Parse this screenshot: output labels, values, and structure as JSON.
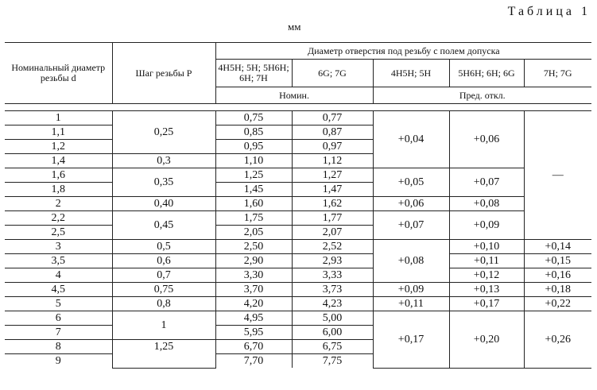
{
  "caption": "Таблица 1",
  "unit": "мм",
  "header": {
    "col_d": "Номинальный диаметр резьбы d",
    "col_p": "Шаг резьбы P",
    "group": "Диаметр отверстия под резьбу с полем допуска",
    "sub_a": "4H5H; 5H; 5H6H; 6H; 7H",
    "sub_b": "6G; 7G",
    "sub_c": "4H5H; 5H",
    "sub_d": "5H6H; 6H; 6G",
    "sub_e": "7H; 7G",
    "nomin": "Номин.",
    "pred": "Пред. откл."
  },
  "rows": [
    {
      "d": "1",
      "a": "0,75",
      "b": "0,77"
    },
    {
      "d": "1,1",
      "a": "0,85",
      "b": "0,87"
    },
    {
      "d": "1,2",
      "a": "0,95",
      "b": "0,97"
    },
    {
      "d": "1,4",
      "a": "1,10",
      "b": "1,12"
    },
    {
      "d": "1,6",
      "a": "1,25",
      "b": "1,27"
    },
    {
      "d": "1,8",
      "a": "1,45",
      "b": "1,47"
    },
    {
      "d": "2",
      "a": "1,60",
      "b": "1,62"
    },
    {
      "d": "2,2",
      "a": "1,75",
      "b": "1,77"
    },
    {
      "d": "2,5",
      "a": "2,05",
      "b": "2,07"
    },
    {
      "d": "3",
      "a": "2,50",
      "b": "2,52"
    },
    {
      "d": "3,5",
      "a": "2,90",
      "b": "2,93"
    },
    {
      "d": "4",
      "a": "3,30",
      "b": "3,33"
    },
    {
      "d": "4,5",
      "a": "3,70",
      "b": "3,73"
    },
    {
      "d": "5",
      "a": "4,20",
      "b": "4,23"
    },
    {
      "d": "6",
      "a": "4,95",
      "b": "5,00"
    },
    {
      "d": "7",
      "a": "5,95",
      "b": "6,00"
    },
    {
      "d": "8",
      "a": "6,70",
      "b": "6,75"
    },
    {
      "d": "9",
      "a": "7,70",
      "b": "7,75"
    }
  ],
  "pitch": {
    "p025": "0,25",
    "p03": "0,3",
    "p035": "0,35",
    "p040": "0,40",
    "p045": "0,45",
    "p05": "0,5",
    "p06": "0,6",
    "p07": "0,7",
    "p075": "0,75",
    "p08": "0,8",
    "p1": "1",
    "p125": "1,25"
  },
  "dev": {
    "c1": "+0,04",
    "c2": "+0,05",
    "c3": "+0,06",
    "c4": "+0,07",
    "c5": "+0,08",
    "c6": "+0,09",
    "c7": "+0,11",
    "c8": "+0,17",
    "d1": "+0,06",
    "d2": "+0,07",
    "d3": "+0,08",
    "d4": "+0,09",
    "d5": "+0,10",
    "d6": "+0,11",
    "d7": "+0,12",
    "d8": "+0,13",
    "d9": "+0,17",
    "d10": "+0,20",
    "e1": "—",
    "e2": "+0,14",
    "e3": "+0,15",
    "e4": "+0,16",
    "e5": "+0,18",
    "e6": "+0,22",
    "e7": "+0,26"
  }
}
